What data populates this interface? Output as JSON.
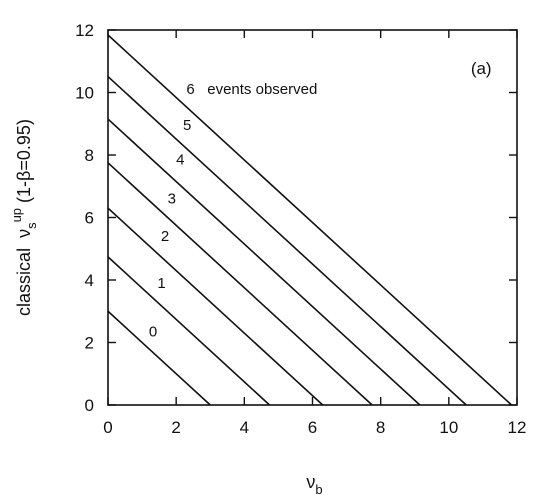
{
  "chart_data": {
    "type": "line",
    "panel_label": "(a)",
    "xlabel": {
      "symbol": "ν",
      "sub": "b"
    },
    "ylabel": {
      "prefix": "classical  ν",
      "sub": "s",
      "sup": "up",
      "suffix": " (1-β=0.95)"
    },
    "xlim": [
      0,
      12
    ],
    "ylim": [
      0,
      12
    ],
    "xticks": [
      0,
      2,
      4,
      6,
      8,
      10,
      12
    ],
    "yticks": [
      0,
      2,
      4,
      6,
      8,
      10,
      12
    ],
    "grid": false,
    "series": [
      {
        "label": "0",
        "x": [
          0,
          3.0
        ],
        "y": [
          3.0,
          0
        ],
        "label_at": [
          1.2,
          2.2
        ]
      },
      {
        "label": "1",
        "x": [
          0,
          4.74
        ],
        "y": [
          4.74,
          0
        ],
        "label_at": [
          1.45,
          3.75
        ]
      },
      {
        "label": "2",
        "x": [
          0,
          6.3
        ],
        "y": [
          6.3,
          0
        ],
        "label_at": [
          1.55,
          5.25
        ]
      },
      {
        "label": "3",
        "x": [
          0,
          7.75
        ],
        "y": [
          7.75,
          0
        ],
        "label_at": [
          1.75,
          6.45
        ]
      },
      {
        "label": "4",
        "x": [
          0,
          9.15
        ],
        "y": [
          9.15,
          0
        ],
        "label_at": [
          2.0,
          7.7
        ]
      },
      {
        "label": "5",
        "x": [
          0,
          10.51
        ],
        "y": [
          10.51,
          0
        ],
        "label_at": [
          2.2,
          8.8
        ]
      },
      {
        "label": "6   events observed",
        "x": [
          0,
          11.84
        ],
        "y": [
          11.84,
          0
        ],
        "label_at": [
          2.3,
          9.95
        ]
      }
    ]
  }
}
